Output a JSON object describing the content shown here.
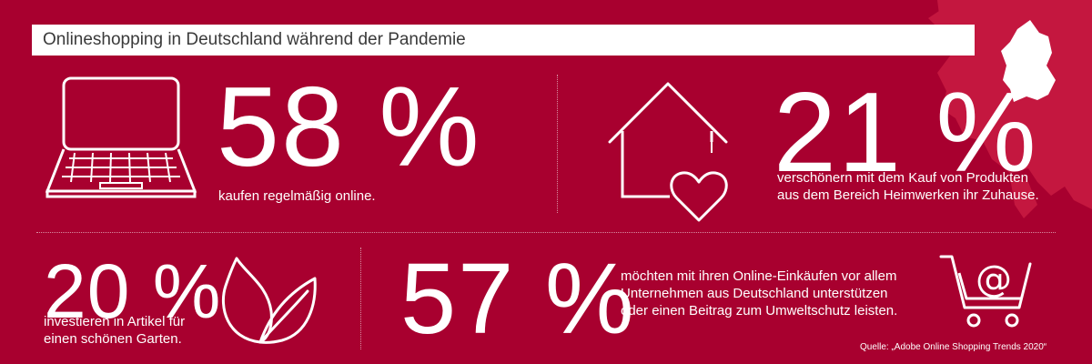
{
  "header": {
    "title": "Onlineshopping in Deutschland während der Pandemie"
  },
  "stats": [
    {
      "value": "58 %",
      "text": "kaufen regelmäßig online.",
      "icon": "laptop-icon"
    },
    {
      "value": "21 %",
      "text_lines": [
        "verschönern mit dem Kauf von Produkten",
        "aus dem Bereich Heimwerken ihr Zuhause."
      ],
      "icon": "house-heart-icon"
    },
    {
      "value": "20 %",
      "text_lines": [
        "investieren in Artikel für",
        "einen schönen Garten."
      ],
      "icon": "leaf-icon"
    },
    {
      "value": "57 %",
      "text_lines": [
        "möchten mit ihren Online-Einkäufen vor allem",
        "Unternehmen aus Deutschland unterstützen",
        "oder einen Beitrag zum Umweltschutz leisten."
      ],
      "icon": "shopping-cart-at-icon"
    }
  ],
  "source": "Quelle: „Adobe Online Shopping Trends 2020“",
  "colors": {
    "background": "#a8002f",
    "map": "#c4173f",
    "germany": "#ffffff"
  }
}
